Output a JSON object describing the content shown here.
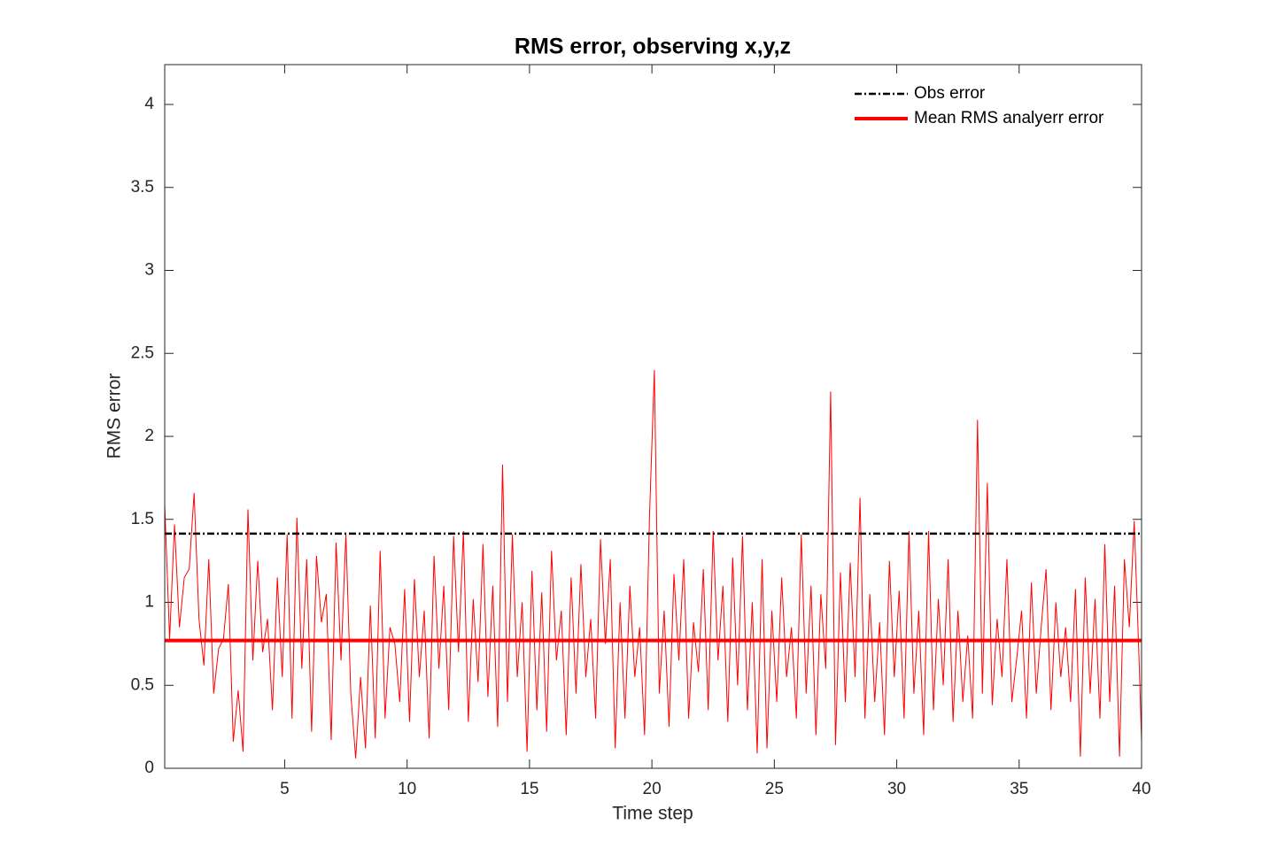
{
  "chart_data": {
    "type": "line",
    "title": "RMS error, observing x,y,z",
    "xlabel": "Time step",
    "ylabel": "RMS error",
    "color": "#ff0000",
    "x": [
      0.1,
      0.3,
      0.5,
      0.7,
      0.9,
      1.1,
      1.3,
      1.5,
      1.7,
      1.9,
      2.1,
      2.3,
      2.5,
      2.7,
      2.9,
      3.1,
      3.3,
      3.5,
      3.7,
      3.9,
      4.1,
      4.3,
      4.5,
      4.7,
      4.9,
      5.1,
      5.3,
      5.5,
      5.7,
      5.9,
      6.1,
      6.3,
      6.5,
      6.7,
      6.9,
      7.1,
      7.3,
      7.5,
      7.7,
      7.9,
      8.1,
      8.3,
      8.5,
      8.7,
      8.9,
      9.1,
      9.3,
      9.5,
      9.7,
      9.9,
      10.1,
      10.3,
      10.5,
      10.7,
      10.9,
      11.1,
      11.3,
      11.5,
      11.7,
      11.9,
      12.1,
      12.3,
      12.5,
      12.7,
      12.9,
      13.1,
      13.3,
      13.5,
      13.7,
      13.9,
      14.1,
      14.3,
      14.5,
      14.7,
      14.9,
      15.1,
      15.3,
      15.5,
      15.7,
      15.9,
      16.1,
      16.3,
      16.5,
      16.7,
      16.9,
      17.1,
      17.3,
      17.5,
      17.7,
      17.9,
      18.1,
      18.3,
      18.5,
      18.7,
      18.9,
      19.1,
      19.3,
      19.5,
      19.7,
      19.9,
      20.1,
      20.3,
      20.5,
      20.7,
      20.9,
      21.1,
      21.3,
      21.5,
      21.7,
      21.9,
      22.1,
      22.3,
      22.5,
      22.7,
      22.9,
      23.1,
      23.3,
      23.5,
      23.7,
      23.9,
      24.1,
      24.3,
      24.5,
      24.7,
      24.9,
      25.1,
      25.3,
      25.5,
      25.7,
      25.9,
      26.1,
      26.3,
      26.5,
      26.7,
      26.9,
      27.1,
      27.3,
      27.5,
      27.7,
      27.9,
      28.1,
      28.3,
      28.5,
      28.7,
      28.9,
      29.1,
      29.3,
      29.5,
      29.7,
      29.9,
      30.1,
      30.3,
      30.5,
      30.7,
      30.9,
      31.1,
      31.3,
      31.5,
      31.7,
      31.9,
      32.1,
      32.3,
      32.5,
      32.7,
      32.9,
      33.1,
      33.3,
      33.5,
      33.7,
      33.9,
      34.1,
      34.3,
      34.5,
      34.7,
      34.9,
      35.1,
      35.3,
      35.5,
      35.7,
      35.9,
      36.1,
      36.3,
      36.5,
      36.7,
      36.9,
      37.1,
      37.3,
      37.5,
      37.7,
      37.9,
      38.1,
      38.3,
      38.5,
      38.7,
      38.9,
      39.1,
      39.3,
      39.5,
      39.7,
      39.9,
      40
    ],
    "values": [
      1.59,
      0.78,
      1.47,
      0.85,
      1.15,
      1.2,
      1.66,
      0.9,
      0.62,
      1.26,
      0.45,
      0.72,
      0.78,
      1.11,
      0.16,
      0.47,
      0.1,
      1.56,
      0.65,
      1.25,
      0.7,
      0.9,
      0.35,
      1.15,
      0.55,
      1.41,
      0.3,
      1.51,
      0.6,
      1.26,
      0.22,
      1.28,
      0.88,
      1.05,
      0.17,
      1.36,
      0.65,
      1.41,
      0.45,
      0.06,
      0.55,
      0.12,
      0.98,
      0.18,
      1.31,
      0.3,
      0.85,
      0.75,
      0.4,
      1.08,
      0.28,
      1.14,
      0.55,
      0.95,
      0.18,
      1.28,
      0.6,
      1.1,
      0.35,
      1.4,
      0.7,
      1.43,
      0.28,
      1.02,
      0.52,
      1.35,
      0.43,
      1.1,
      0.25,
      1.83,
      0.4,
      1.41,
      0.55,
      1.0,
      0.1,
      1.19,
      0.35,
      1.06,
      0.22,
      1.31,
      0.65,
      0.95,
      0.2,
      1.15,
      0.45,
      1.23,
      0.55,
      0.9,
      0.3,
      1.38,
      0.75,
      1.26,
      0.12,
      1.0,
      0.3,
      1.1,
      0.55,
      0.85,
      0.2,
      1.51,
      2.4,
      0.45,
      0.95,
      0.25,
      1.17,
      0.65,
      1.26,
      0.3,
      0.88,
      0.58,
      1.2,
      0.35,
      1.43,
      0.65,
      1.1,
      0.28,
      1.27,
      0.5,
      1.4,
      0.35,
      1.0,
      0.09,
      1.26,
      0.12,
      0.95,
      0.4,
      1.15,
      0.55,
      0.85,
      0.3,
      1.41,
      0.45,
      1.1,
      0.2,
      1.05,
      0.6,
      2.27,
      0.14,
      1.18,
      0.4,
      1.24,
      0.55,
      1.63,
      0.3,
      1.05,
      0.4,
      0.88,
      0.2,
      1.25,
      0.55,
      1.07,
      0.3,
      1.43,
      0.45,
      0.95,
      0.2,
      1.43,
      0.35,
      1.02,
      0.5,
      1.26,
      0.28,
      0.95,
      0.4,
      0.8,
      0.3,
      2.1,
      0.45,
      1.72,
      0.38,
      0.9,
      0.55,
      1.26,
      0.4,
      0.66,
      0.95,
      0.3,
      1.12,
      0.45,
      0.85,
      1.2,
      0.35,
      1.0,
      0.55,
      0.85,
      0.4,
      1.08,
      0.07,
      1.15,
      0.45,
      1.02,
      0.3,
      1.35,
      0.4,
      1.1,
      0.07,
      1.26,
      0.85,
      1.49,
      0.65,
      0.16
    ],
    "hlines": [
      {
        "name": "Obs error",
        "value": 1.414,
        "color": "#000000",
        "style": "dashdot"
      },
      {
        "name": "Mean RMS analyerr error",
        "value": 0.77,
        "color": "#ff0000",
        "style": "solid"
      }
    ],
    "legend": "northeast",
    "xlim": [
      0.1,
      40
    ],
    "ylim": [
      0,
      4.24
    ],
    "xticks": [
      5,
      10,
      15,
      20,
      25,
      30,
      35,
      40
    ],
    "yticks": [
      0,
      0.5,
      1,
      1.5,
      2,
      2.5,
      3,
      3.5,
      4
    ]
  }
}
